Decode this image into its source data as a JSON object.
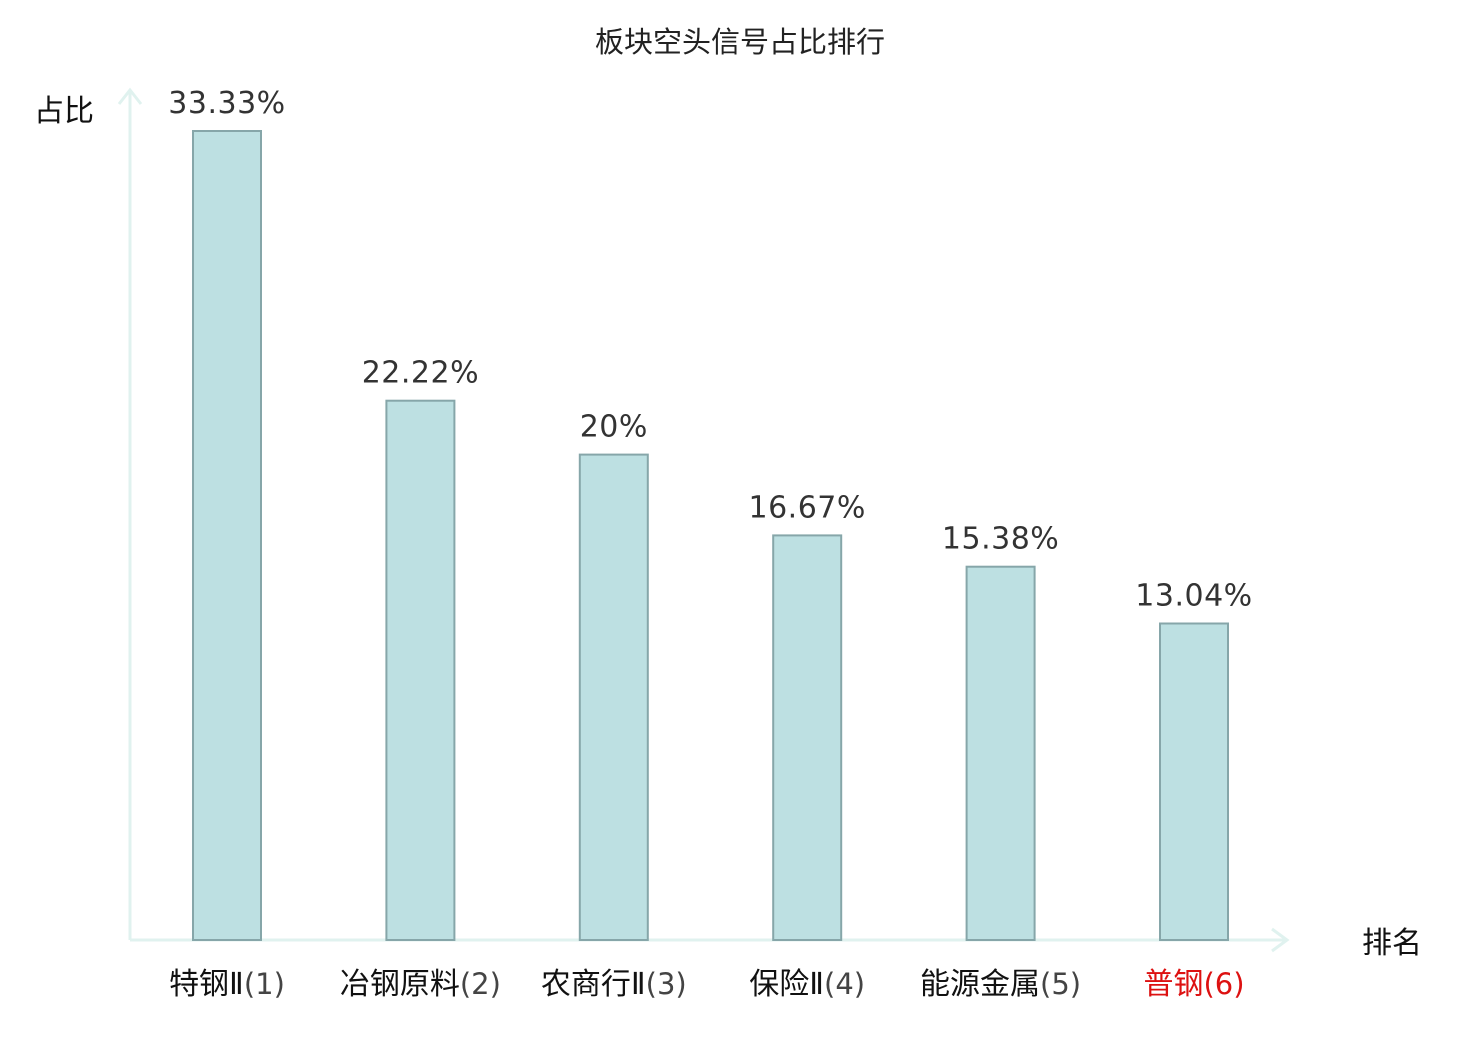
{
  "chart_data": {
    "type": "bar",
    "title": "板块空头信号占比排行",
    "xlabel": "排名",
    "ylabel": "占比",
    "categories": [
      {
        "name": "特钢Ⅱ",
        "rank": "(1)",
        "highlight": false
      },
      {
        "name": "冶钢原料",
        "rank": "(2)",
        "highlight": false
      },
      {
        "name": "农商行Ⅱ",
        "rank": "(3)",
        "highlight": false
      },
      {
        "name": "保险Ⅱ",
        "rank": "(4)",
        "highlight": false
      },
      {
        "name": "能源金属",
        "rank": "(5)",
        "highlight": false
      },
      {
        "name": "普钢",
        "rank": "(6)",
        "highlight": true
      }
    ],
    "values": [
      33.33,
      22.22,
      20,
      16.67,
      15.38,
      13.04
    ],
    "value_labels": [
      "33.33%",
      "22.22%",
      "20%",
      "16.67%",
      "15.38%",
      "13.04%"
    ],
    "ylim": [
      0,
      33.33
    ],
    "grid": false,
    "legend": "none"
  },
  "colors": {
    "bar_fill": "#bde0e2",
    "bar_stroke": "#86a6a9",
    "axis": "#e0f2ef",
    "label": "#111111",
    "rank": "#444444",
    "highlight": "#dd1111"
  }
}
